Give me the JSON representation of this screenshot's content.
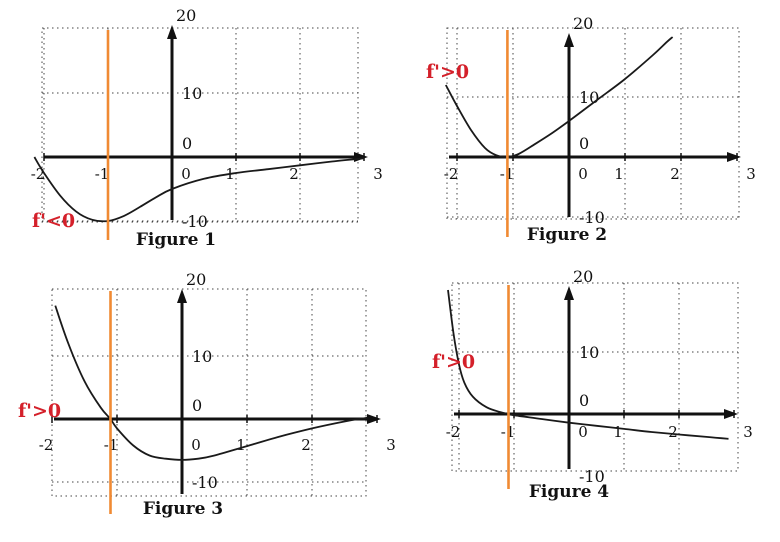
{
  "colors": {
    "axis": "#111111",
    "curve": "#1a1a1a",
    "grid": "#444444",
    "marker": "#f08a33",
    "annotation": "#d4202a"
  },
  "chart_data": [
    {
      "type": "line",
      "title": "Figure 1",
      "xlim": [
        -2.2,
        3
      ],
      "ylim": [
        -10.5,
        20
      ],
      "x_ticks": [
        "-2",
        "-1",
        "0",
        "1",
        "2",
        "3"
      ],
      "y_ticks": [
        "20",
        "10",
        "0",
        "-10"
      ],
      "grid": "dotted",
      "vertical_line_x": -1,
      "annotation": "f'<0",
      "series": [
        {
          "x": [
            -2.15,
            -2,
            -1.75,
            -1.5,
            -1.25,
            -1,
            -0.75,
            -0.5,
            -0.25,
            0,
            0.5,
            1,
            1.5,
            2,
            2.5,
            3
          ],
          "y": [
            0,
            -2.5,
            -6,
            -8.5,
            -9.8,
            -10,
            -9.2,
            -7.8,
            -6.3,
            -5,
            -3.4,
            -2.5,
            -1.9,
            -1.3,
            -0.7,
            -0.2
          ]
        }
      ]
    },
    {
      "type": "line",
      "title": "Figure 2",
      "xlim": [
        -2.2,
        3
      ],
      "ylim": [
        -10.5,
        20
      ],
      "x_ticks": [
        "-2",
        "-1",
        "0",
        "1",
        "2",
        "3"
      ],
      "y_ticks": [
        "20",
        "10",
        "0",
        "-10"
      ],
      "grid": "dotted",
      "vertical_line_x": -1.1,
      "annotation": "f'>0",
      "series": [
        {
          "x": [
            -2.2,
            -2,
            -1.75,
            -1.5,
            -1.3,
            -1.1,
            -0.9,
            -0.6,
            -0.3,
            0,
            0.5,
            1,
            1.5,
            1.75,
            1.85
          ],
          "y": [
            12,
            8.5,
            4.5,
            1.5,
            0.3,
            0,
            0.5,
            2.2,
            4,
            6,
            9.5,
            13,
            17,
            19.2,
            20
          ]
        }
      ]
    },
    {
      "type": "line",
      "title": "Figure 3",
      "xlim": [
        -2.2,
        3
      ],
      "ylim": [
        -10.5,
        20
      ],
      "x_ticks": [
        "-2",
        "-1",
        "0",
        "1",
        "2",
        "3"
      ],
      "y_ticks": [
        "20",
        "10",
        "0",
        "-10"
      ],
      "grid": "dotted",
      "vertical_line_x": -1.1,
      "annotation": "f'>0",
      "series": [
        {
          "x": [
            -1.95,
            -1.75,
            -1.5,
            -1.25,
            -1.1,
            -1,
            -0.75,
            -0.5,
            -0.25,
            0,
            0.25,
            0.5,
            1,
            1.5,
            2,
            2.5,
            2.85
          ],
          "y": [
            18,
            12,
            6,
            1.8,
            0,
            -1.5,
            -4.2,
            -5.8,
            -6.3,
            -6.5,
            -6.3,
            -5.8,
            -4.3,
            -2.8,
            -1.5,
            -0.4,
            0.2
          ]
        }
      ]
    },
    {
      "type": "line",
      "title": "Figure 4",
      "xlim": [
        -2.2,
        3
      ],
      "ylim": [
        -10.5,
        20
      ],
      "x_ticks": [
        "-2",
        "-1",
        "0",
        "1",
        "2",
        "3"
      ],
      "y_ticks": [
        "20",
        "10",
        "0",
        "-10"
      ],
      "grid": "dotted",
      "vertical_line_x": -1.1,
      "annotation": "f'>0",
      "series": [
        {
          "x": [
            -2.2,
            -2.1,
            -2,
            -1.9,
            -1.75,
            -1.5,
            -1.25,
            -1.1,
            -1,
            -0.5,
            0,
            0.5,
            1,
            1.5,
            2,
            2.5,
            2.9
          ],
          "y": [
            20,
            13,
            8,
            5,
            2.8,
            1.1,
            0.3,
            0,
            -0.2,
            -0.8,
            -1.4,
            -1.9,
            -2.4,
            -2.9,
            -3.3,
            -3.7,
            -4
          ]
        }
      ]
    }
  ]
}
